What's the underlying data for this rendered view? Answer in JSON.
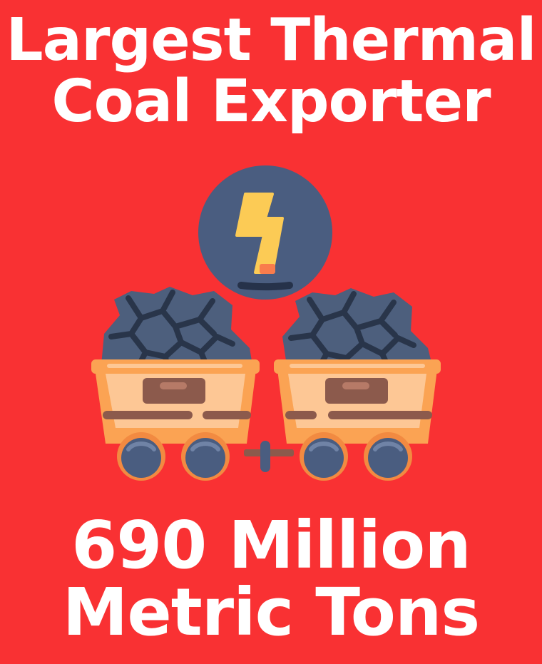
{
  "title": {
    "line1": "Largest Thermal",
    "line2": "Coal Exporter"
  },
  "stat": {
    "line1": "690 Million",
    "line2": "Metric Tons"
  },
  "illustration": {
    "icon": "coal-mine-carts-with-power-bolt",
    "colors": {
      "background": "#f93133",
      "text": "#ffffff",
      "badge": "#4a5d80",
      "bolt": "#fccb55",
      "coal": "#4d5f7d",
      "coal_cracks": "#29354a",
      "cart": "#fba353",
      "cart_inner": "#fdc795",
      "plate": "#8c5a4c",
      "wheel": "#4a5d80"
    }
  }
}
